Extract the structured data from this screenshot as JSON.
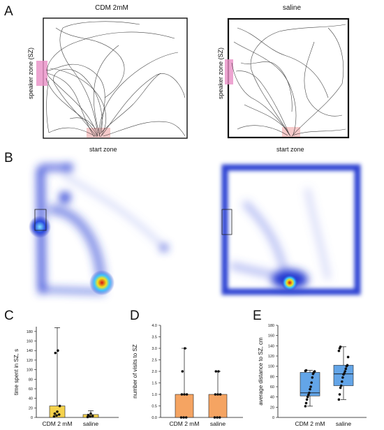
{
  "panel_letters": [
    "A",
    "B",
    "C",
    "D",
    "E"
  ],
  "panel_a": {
    "conditions": [
      "CDM 2mM",
      "saline"
    ],
    "speaker_zone_label": "speaker zone (SZ)",
    "start_zone_label": "start zone"
  },
  "colors": {
    "speaker_zone": "#e98fc6",
    "start_zone": "#f3b3b3",
    "heat_low": "#1d2bc8",
    "heat_high": "#d41414",
    "bar_c": "#f5d24c",
    "bar_d": "#f5a462",
    "box_e": "#63a5e8"
  },
  "chart_data": [
    {
      "type": "bar",
      "panel": "C",
      "categories": [
        "CDM 2 mM",
        "saline"
      ],
      "values": [
        24,
        6
      ],
      "error_max": [
        188,
        14
      ],
      "points": [
        [
          2,
          4,
          6,
          8,
          12,
          24,
          135,
          140
        ],
        [
          1,
          2,
          3,
          5,
          8
        ]
      ],
      "ylabel": "time spent in SZ, s",
      "xlabel": "",
      "ylim": [
        0,
        190
      ],
      "yticks": [
        0,
        20,
        40,
        60,
        80,
        100,
        120,
        140,
        160,
        180
      ]
    },
    {
      "type": "bar",
      "panel": "D",
      "categories": [
        "CDM 2 mM",
        "saline"
      ],
      "values": [
        1.0,
        1.0
      ],
      "error_max": [
        3.0,
        2.0
      ],
      "points": [
        [
          0,
          0,
          0,
          1,
          1,
          1,
          2,
          3
        ],
        [
          0,
          0,
          0,
          1,
          1,
          1,
          2,
          2
        ]
      ],
      "ylabel": "number of visits to SZ",
      "xlabel": "",
      "ylim": [
        0,
        4.0
      ],
      "yticks": [
        0.0,
        0.5,
        1.0,
        1.5,
        2.0,
        2.5,
        3.0,
        3.5,
        4.0
      ]
    },
    {
      "type": "box",
      "panel": "E",
      "categories": [
        "CDM 2 mM",
        "saline"
      ],
      "boxes": [
        {
          "whisker_low": 22,
          "q1": 42,
          "median": 48,
          "q3": 88,
          "whisker_high": 92
        },
        {
          "whisker_low": 35,
          "q1": 62,
          "median": 85,
          "q3": 102,
          "whisker_high": 138
        }
      ],
      "points": [
        [
          22,
          28,
          35,
          40,
          44,
          48,
          55,
          60,
          68,
          78,
          85,
          88,
          90,
          91,
          92
        ],
        [
          35,
          45,
          58,
          62,
          70,
          78,
          84,
          86,
          90,
          95,
          100,
          102,
          118,
          130,
          135,
          138
        ]
      ],
      "ylabel": "average distance to SZ, cm",
      "xlabel": "",
      "ylim": [
        0,
        180
      ],
      "yticks": [
        0,
        20,
        40,
        60,
        80,
        100,
        120,
        140,
        160,
        180
      ]
    }
  ]
}
